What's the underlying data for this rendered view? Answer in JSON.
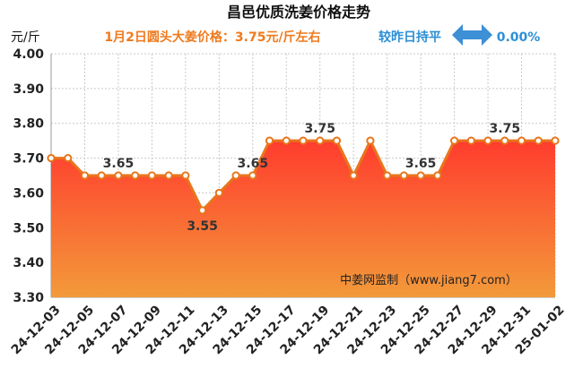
{
  "header": {
    "title": "昌邑优质洗姜价格走势",
    "subtitle": "1月2日圆头大姜价格：3.75元/斤左右",
    "compare_label": "较昨日持平",
    "change_pct": "0.00%",
    "unit": "元/斤"
  },
  "watermark": "中姜网监制（www.jiang7.com）",
  "colors": {
    "line": "#e8761c",
    "area_top": "#ff3c2e",
    "area_bottom": "#f39a3a",
    "arrow": "#3d8fd6",
    "grid": "#c9c9c9"
  },
  "chart_data": {
    "type": "area",
    "title": "昌邑优质洗姜价格走势",
    "ylabel": "元/斤",
    "ylim": [
      3.3,
      4.0
    ],
    "yticks": [
      "3.30",
      "3.40",
      "3.50",
      "3.60",
      "3.70",
      "3.80",
      "3.90",
      "4.00"
    ],
    "xtick_labels": [
      "24-12-03",
      "24-12-05",
      "24-12-07",
      "24-12-09",
      "24-12-11",
      "24-12-13",
      "24-12-15",
      "24-12-17",
      "24-12-19",
      "24-12-21",
      "24-12-23",
      "24-12-25",
      "24-12-27",
      "24-12-29",
      "24-12-31",
      "25-01-02"
    ],
    "x": [
      "24-12-03",
      "24-12-04",
      "24-12-05",
      "24-12-06",
      "24-12-07",
      "24-12-08",
      "24-12-09",
      "24-12-10",
      "24-12-11",
      "24-12-12",
      "24-12-13",
      "24-12-14",
      "24-12-15",
      "24-12-16",
      "24-12-17",
      "24-12-18",
      "24-12-19",
      "24-12-20",
      "24-12-21",
      "24-12-22",
      "24-12-23",
      "24-12-24",
      "24-12-25",
      "24-12-26",
      "24-12-27",
      "24-12-28",
      "24-12-29",
      "24-12-30",
      "24-12-31",
      "25-01-01",
      "25-01-02"
    ],
    "values": [
      3.7,
      3.7,
      3.65,
      3.65,
      3.65,
      3.65,
      3.65,
      3.65,
      3.65,
      3.55,
      3.6,
      3.65,
      3.65,
      3.75,
      3.75,
      3.75,
      3.75,
      3.75,
      3.65,
      3.75,
      3.65,
      3.65,
      3.65,
      3.65,
      3.75,
      3.75,
      3.75,
      3.75,
      3.75,
      3.75,
      3.75
    ],
    "data_labels": [
      {
        "index": 4,
        "text": "3.65"
      },
      {
        "index": 9,
        "text": "3.55"
      },
      {
        "index": 12,
        "text": "3.65"
      },
      {
        "index": 16,
        "text": "3.75"
      },
      {
        "index": 22,
        "text": "3.65"
      },
      {
        "index": 27,
        "text": "3.75"
      }
    ],
    "grid": true
  }
}
